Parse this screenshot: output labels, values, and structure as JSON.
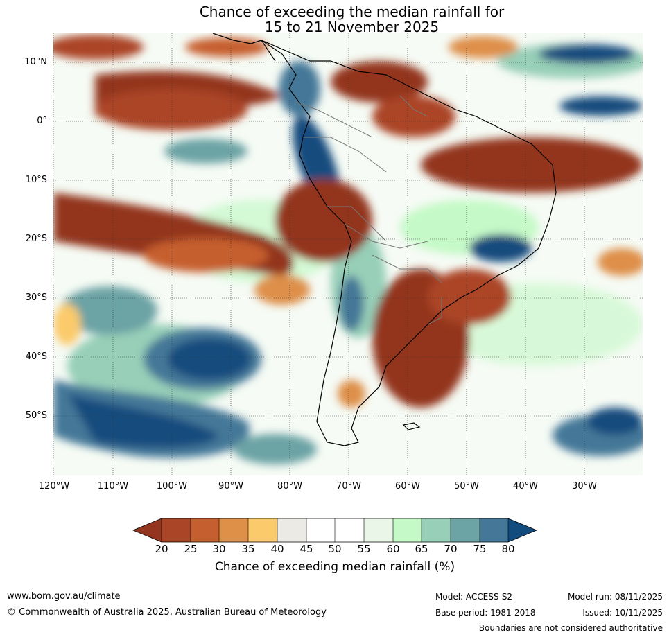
{
  "title": {
    "line1": "Chance of exceeding the median rainfall for",
    "line2": "15 to 21 November 2025"
  },
  "map": {
    "lat_labels": [
      "10°N",
      "0°",
      "10°S",
      "20°S",
      "30°S",
      "40°S",
      "50°S"
    ],
    "lon_labels": [
      "120°W",
      "110°W",
      "100°W",
      "90°W",
      "80°W",
      "70°W",
      "60°W",
      "50°W",
      "40°W",
      "30°W"
    ]
  },
  "colorbar": {
    "ticks": [
      "20",
      "25",
      "30",
      "35",
      "40",
      "45",
      "50",
      "55",
      "60",
      "65",
      "70",
      "75",
      "80"
    ],
    "colors": [
      "#93351f",
      "#ab4527",
      "#c65f2f",
      "#de8f48",
      "#fbca6a",
      "#eceae4",
      "#ffffff",
      "#ffffff",
      "#e9f6e8",
      "#c5f9c7",
      "#97cfb8",
      "#6ca3a4",
      "#457898",
      "#124b7e"
    ],
    "label": "Chance of exceeding median rainfall (%)"
  },
  "footer": {
    "website": "www.bom.gov.au/climate",
    "copyright": "© Commonwealth of Australia 2025, Australian Bureau of Meteorology",
    "model": "Model: ACCESS-S2",
    "base_period": "Base period: 1981-2018",
    "model_run": "Model run: 08/11/2025",
    "issued": "Issued: 10/11/2025",
    "boundaries": "Boundaries are not considered authoritative"
  }
}
